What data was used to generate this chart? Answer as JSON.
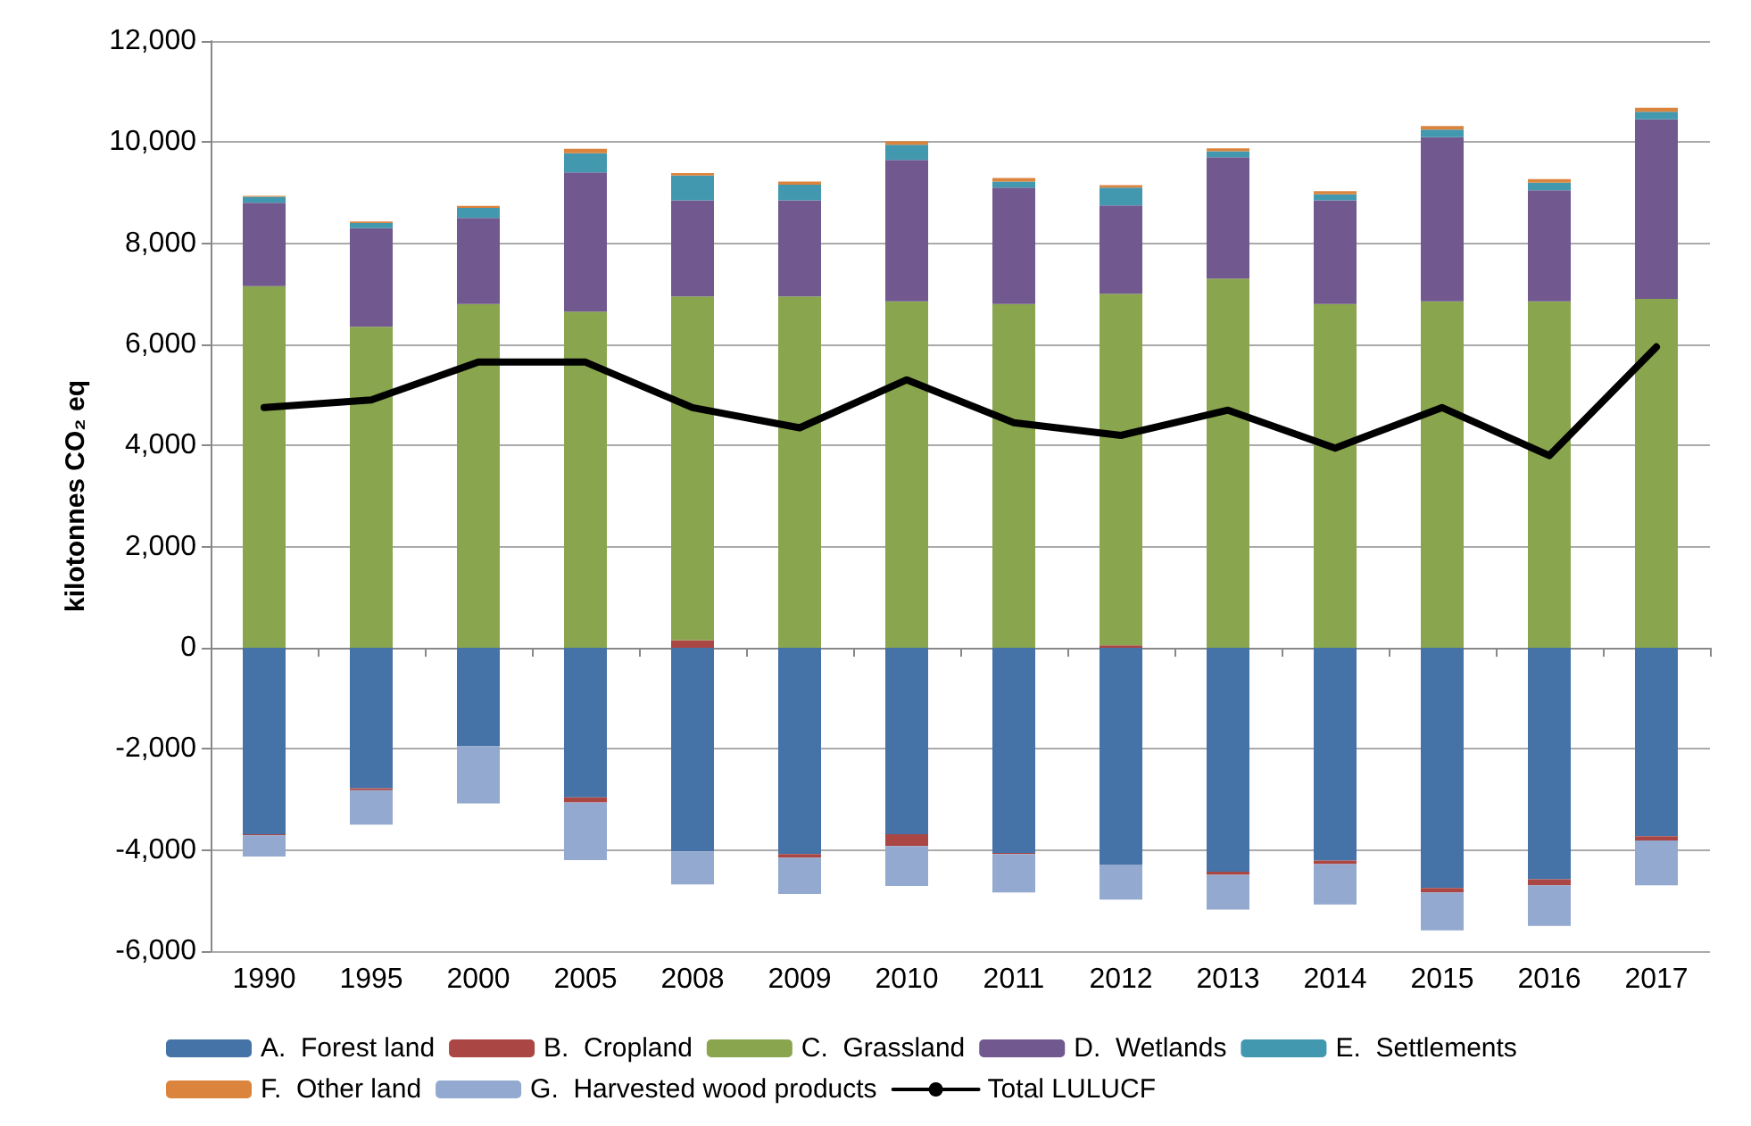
{
  "chart_data": {
    "type": "bar",
    "stacked": true,
    "ylabel": "kilotonnes CO₂ eq",
    "categories": [
      "1990",
      "1995",
      "2000",
      "2005",
      "2008",
      "2009",
      "2010",
      "2011",
      "2012",
      "2013",
      "2014",
      "2015",
      "2016",
      "2017"
    ],
    "ylim": [
      -6000,
      12000
    ],
    "yticks": [
      {
        "value": -6000,
        "label": "-6,000"
      },
      {
        "value": -4000,
        "label": "-4,000"
      },
      {
        "value": -2000,
        "label": "-2,000"
      },
      0,
      {
        "value": 2000,
        "label": "2,000"
      },
      {
        "value": 4000,
        "label": "4,000"
      },
      {
        "value": 6000,
        "label": "6,000"
      },
      {
        "value": 8000,
        "label": "8,000"
      },
      {
        "value": 10000,
        "label": "10,000"
      },
      {
        "value": 12000,
        "label": "12,000"
      }
    ],
    "grid": "y",
    "legend": "bottom",
    "marker": "none",
    "series": [
      {
        "name": "A.  Forest land",
        "color": "#4572a7",
        "values": [
          -3690,
          -2780,
          -1950,
          -2960,
          -4030,
          -4080,
          -3690,
          -4060,
          -4290,
          -4430,
          -4210,
          -4750,
          -4580,
          -3730
        ]
      },
      {
        "name": "B.  Cropland",
        "color": "#aa4643",
        "values": [
          -20,
          -40,
          0,
          -100,
          150,
          -70,
          -230,
          -20,
          50,
          -60,
          -70,
          -90,
          -120,
          -80
        ]
      },
      {
        "name": "C.  Grassland",
        "color": "#89a54e",
        "values": [
          7150,
          6350,
          6800,
          6650,
          6800,
          6950,
          6850,
          6800,
          6950,
          7300,
          6800,
          6850,
          6850,
          6900
        ]
      },
      {
        "name": "D.  Wetlands",
        "color": "#71588f",
        "values": [
          1650,
          1950,
          1700,
          2750,
          1900,
          1900,
          2800,
          2300,
          1750,
          2400,
          2050,
          3250,
          2200,
          3550
        ]
      },
      {
        "name": "E.  Settlements",
        "color": "#4198af",
        "values": [
          120,
          100,
          200,
          380,
          490,
          310,
          300,
          120,
          350,
          120,
          120,
          150,
          150,
          150
        ]
      },
      {
        "name": "F.  Other land",
        "color": "#db843d",
        "values": [
          20,
          30,
          40,
          90,
          50,
          60,
          70,
          70,
          50,
          60,
          60,
          70,
          70,
          80
        ]
      },
      {
        "name": "G.  Harvested wood products",
        "color": "#93a9cf",
        "values": [
          -420,
          -680,
          -1130,
          -1140,
          -650,
          -720,
          -790,
          -760,
          -690,
          -690,
          -800,
          -750,
          -800,
          -890
        ]
      },
      {
        "name": "Total LULUCF",
        "type": "line",
        "color": "#000000",
        "line_style": "solid",
        "values": [
          4750,
          4900,
          5650,
          5650,
          4750,
          4350,
          5300,
          4450,
          4200,
          4700,
          3950,
          4750,
          3800,
          5950
        ]
      }
    ]
  }
}
